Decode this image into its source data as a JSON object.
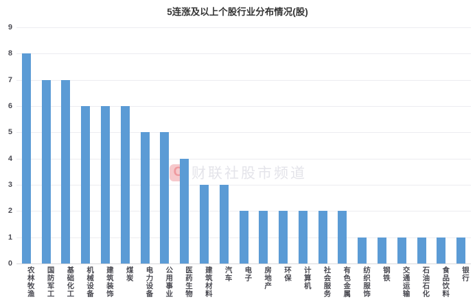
{
  "chart_data": {
    "type": "bar",
    "title": "5连涨及以上个股行业分布情况(股)",
    "categories": [
      "农林牧渔",
      "国防军工",
      "基础化工",
      "机械设备",
      "建筑装饰",
      "煤炭",
      "电力设备",
      "公用事业",
      "医药生物",
      "建筑材料",
      "汽车",
      "电子",
      "房地产",
      "环保",
      "计算机",
      "社会服务",
      "有色金属",
      "纺织服饰",
      "钢铁",
      "交通运输",
      "石油石化",
      "食品饮料",
      "银行"
    ],
    "values": [
      8,
      7,
      7,
      6,
      6,
      6,
      5,
      5,
      4,
      3,
      3,
      2,
      2,
      2,
      2,
      2,
      2,
      1,
      1,
      1,
      1,
      1,
      1
    ],
    "xlabel": "",
    "ylabel": "",
    "ylim": [
      0,
      9
    ],
    "yticks": [
      0,
      1,
      2,
      3,
      4,
      5,
      6,
      7,
      8,
      9
    ],
    "grid": "horizontal",
    "legend": "none"
  },
  "watermark": {
    "logo_letter": "C",
    "text": "财联社股市频道"
  },
  "colors": {
    "bar": "#5b9bd5",
    "grid": "#ececf0",
    "axis_line": "#d6d6db",
    "tick_label": "#4a4a52",
    "title": "#333333",
    "watermark_text": "#e4e4ea",
    "watermark_logo_bg": "#f6c9cc",
    "watermark_logo_fg": "#ee9a9f"
  }
}
